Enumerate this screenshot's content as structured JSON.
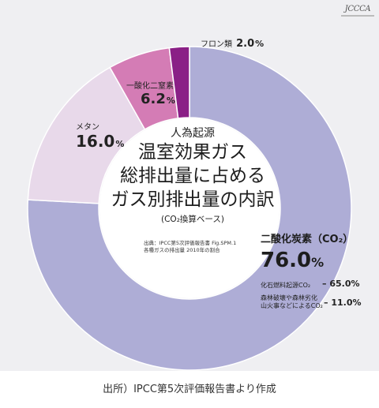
{
  "logo_text": "JCCCA",
  "chart_data": {
    "type": "pie",
    "style": "donut",
    "title_lines": [
      "温室効果ガス",
      "総排出量に占める",
      "ガス別排出量の内訳"
    ],
    "title_prefix": "人為起源",
    "basis": "(CO₂換算ベース)",
    "source_lines": [
      "出典：IPCC第5次評価報告書 Fig.SPM.1",
      "各種ガスの排出量 2010年の割合"
    ],
    "slices": [
      {
        "key": "co2",
        "label": "二酸化炭素（CO₂）",
        "value": 76.0,
        "value_text": "76.0",
        "color": "#aeadd6"
      },
      {
        "key": "ch4",
        "label": "メタン",
        "value": 16.0,
        "value_text": "16.0",
        "color": "#e8d9ea"
      },
      {
        "key": "n2o",
        "label": "一酸化二窒素",
        "value": 6.2,
        "value_text": "6.2",
        "color": "#d47cb5"
      },
      {
        "key": "fgas",
        "label": "フロン類",
        "value": 2.0,
        "value_text": "2.0",
        "color": "#8a1f86"
      }
    ],
    "percent_sign": "%",
    "co2_breakdown": [
      {
        "label": "化石燃料起源CO₂",
        "value_text": "65.0%",
        "value": 65.0
      },
      {
        "label_lines": [
          "森林破壊や森林劣化",
          "山火事などによるCO₂"
        ],
        "value_text": "11.0%",
        "value": 11.0
      }
    ]
  },
  "footer_text": "出所）IPCC第5次評価報告書より作成"
}
